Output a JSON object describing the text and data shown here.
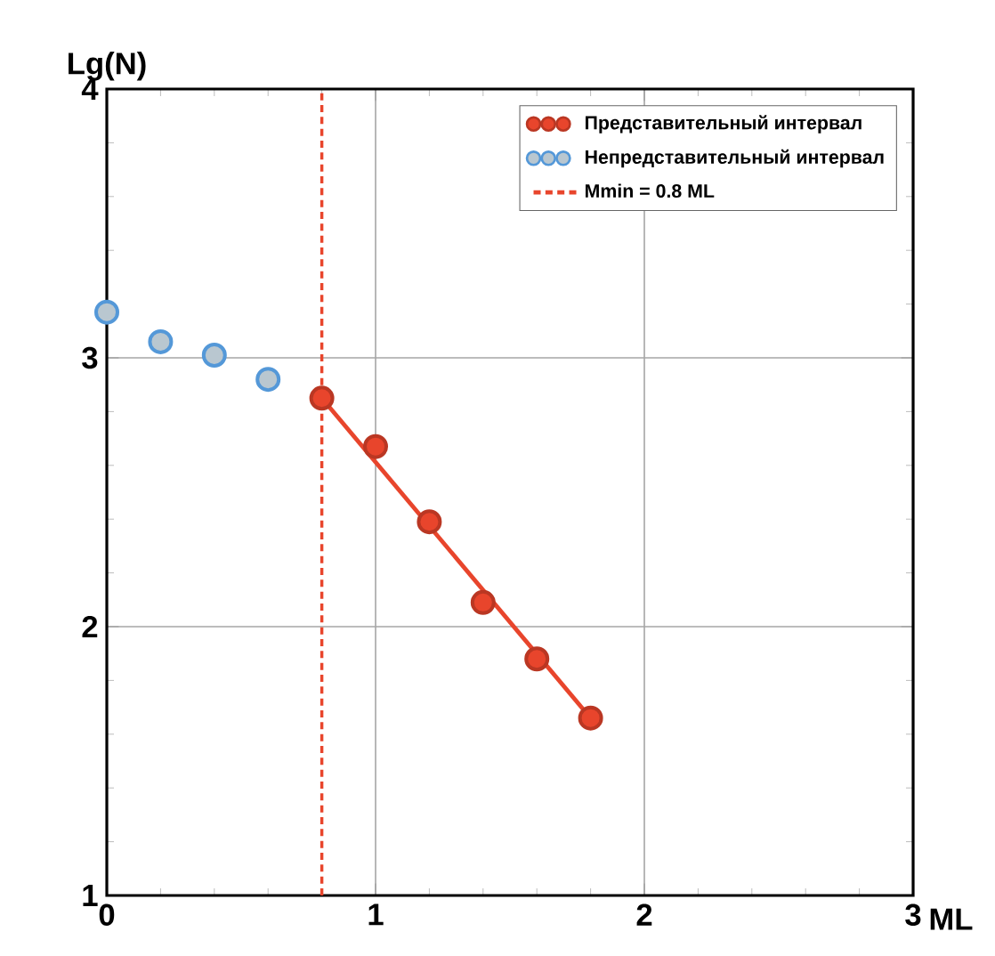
{
  "chart_data": {
    "type": "scatter",
    "xlabel": "ML",
    "ylabel": "Lg(N)",
    "xlim": [
      0,
      3
    ],
    "ylim": [
      1,
      4
    ],
    "xticks": [
      0,
      1,
      2,
      3
    ],
    "yticks": [
      1,
      2,
      3,
      4
    ],
    "grid": true,
    "legend": "top right",
    "marker": "circle",
    "series": [
      {
        "name": "Представительный интервал",
        "color": "#e8452c",
        "x": [
          0.8,
          1.0,
          1.2,
          1.4,
          1.6,
          1.8
        ],
        "values": [
          2.85,
          2.67,
          2.39,
          2.09,
          1.88,
          1.66
        ]
      },
      {
        "name": "Непредставительный интервал",
        "color": "#b9c7d0",
        "x": [
          0,
          0.2,
          0.4,
          0.6
        ],
        "values": [
          3.17,
          3.06,
          3.01,
          2.92
        ]
      },
      {
        "type": "line",
        "marker": "none",
        "color": "#e8452c",
        "x": [
          0.8,
          1.8
        ],
        "values": [
          2.85,
          1.66
        ]
      },
      {
        "type": "line",
        "name": "Mmin = 0.8 ML",
        "marker": "none",
        "line_style": "dashed",
        "color": "#e8452c",
        "x": [
          0.8,
          0.8
        ],
        "values": [
          1,
          4
        ]
      }
    ]
  }
}
